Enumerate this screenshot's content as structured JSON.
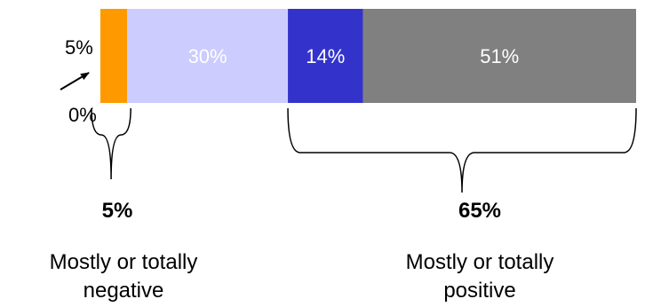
{
  "chart_data": {
    "type": "bar",
    "orientation": "horizontal-stacked",
    "xlim": [
      0,
      100
    ],
    "segments": [
      {
        "label": "0%",
        "value": 0,
        "color": "#ffffff",
        "label_color": "#000000"
      },
      {
        "label": "5%",
        "value": 5,
        "color": "#ff9900",
        "label_color": "#000000"
      },
      {
        "label": "30%",
        "value": 30,
        "color": "#ccccff",
        "label_color": "#ffffff"
      },
      {
        "label": "14%",
        "value": 14,
        "color": "#3333cc",
        "label_color": "#ffffff"
      },
      {
        "label": "51%",
        "value": 51,
        "color": "#808080",
        "label_color": "#ffffff"
      }
    ],
    "groups": [
      {
        "segments": [
          0,
          1
        ],
        "total_label": "5%",
        "caption_line1": "Mostly or totally",
        "caption_line2": "negative"
      },
      {
        "segments": [
          3,
          4
        ],
        "total_label": "65%",
        "caption_line1": "Mostly or totally",
        "caption_line2": "positive"
      }
    ]
  }
}
